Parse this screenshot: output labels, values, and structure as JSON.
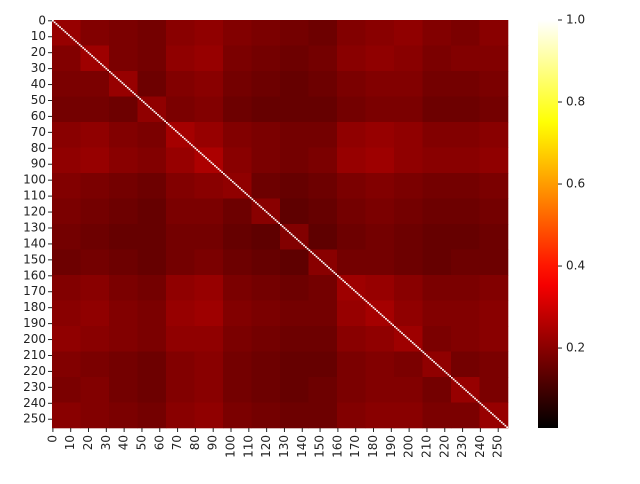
{
  "chart_data": {
    "type": "heatmap",
    "colormap": "hot",
    "xlim": [
      0,
      256
    ],
    "ylim": [
      0,
      256
    ],
    "xticks": [
      0,
      10,
      20,
      30,
      40,
      50,
      60,
      70,
      80,
      90,
      100,
      110,
      120,
      130,
      140,
      150,
      160,
      170,
      180,
      190,
      200,
      210,
      220,
      230,
      240,
      250
    ],
    "yticks": [
      0,
      10,
      20,
      30,
      40,
      50,
      60,
      70,
      80,
      90,
      100,
      110,
      120,
      130,
      140,
      150,
      160,
      170,
      180,
      190,
      200,
      210,
      220,
      230,
      240,
      250
    ],
    "values": [
      [
        0.22,
        0.19,
        0.18,
        0.17,
        0.2,
        0.21,
        0.19,
        0.18,
        0.17,
        0.16,
        0.19,
        0.2,
        0.21,
        0.19,
        0.18,
        0.2
      ],
      [
        0.19,
        0.23,
        0.18,
        0.17,
        0.21,
        0.22,
        0.18,
        0.17,
        0.16,
        0.17,
        0.2,
        0.21,
        0.2,
        0.18,
        0.19,
        0.19
      ],
      [
        0.18,
        0.18,
        0.22,
        0.16,
        0.19,
        0.2,
        0.17,
        0.16,
        0.15,
        0.16,
        0.18,
        0.19,
        0.19,
        0.17,
        0.17,
        0.18
      ],
      [
        0.17,
        0.17,
        0.16,
        0.21,
        0.18,
        0.19,
        0.16,
        0.15,
        0.15,
        0.15,
        0.17,
        0.18,
        0.18,
        0.16,
        0.16,
        0.17
      ],
      [
        0.2,
        0.21,
        0.19,
        0.18,
        0.24,
        0.22,
        0.19,
        0.18,
        0.17,
        0.17,
        0.21,
        0.22,
        0.21,
        0.19,
        0.19,
        0.2
      ],
      [
        0.21,
        0.22,
        0.2,
        0.19,
        0.22,
        0.25,
        0.2,
        0.18,
        0.17,
        0.18,
        0.22,
        0.23,
        0.21,
        0.2,
        0.2,
        0.21
      ],
      [
        0.19,
        0.18,
        0.17,
        0.16,
        0.19,
        0.2,
        0.21,
        0.16,
        0.15,
        0.16,
        0.18,
        0.19,
        0.18,
        0.17,
        0.17,
        0.18
      ],
      [
        0.18,
        0.17,
        0.16,
        0.15,
        0.18,
        0.18,
        0.16,
        0.2,
        0.14,
        0.15,
        0.17,
        0.18,
        0.17,
        0.16,
        0.16,
        0.17
      ],
      [
        0.17,
        0.16,
        0.15,
        0.15,
        0.17,
        0.17,
        0.15,
        0.14,
        0.19,
        0.14,
        0.16,
        0.17,
        0.16,
        0.15,
        0.15,
        0.16
      ],
      [
        0.16,
        0.17,
        0.16,
        0.15,
        0.17,
        0.18,
        0.16,
        0.15,
        0.14,
        0.2,
        0.17,
        0.17,
        0.16,
        0.15,
        0.16,
        0.16
      ],
      [
        0.19,
        0.2,
        0.18,
        0.17,
        0.21,
        0.22,
        0.18,
        0.17,
        0.16,
        0.17,
        0.23,
        0.22,
        0.2,
        0.18,
        0.18,
        0.19
      ],
      [
        0.2,
        0.21,
        0.19,
        0.18,
        0.22,
        0.23,
        0.19,
        0.18,
        0.17,
        0.17,
        0.22,
        0.24,
        0.21,
        0.19,
        0.19,
        0.2
      ],
      [
        0.21,
        0.2,
        0.19,
        0.18,
        0.21,
        0.21,
        0.18,
        0.17,
        0.16,
        0.16,
        0.2,
        0.21,
        0.23,
        0.18,
        0.19,
        0.2
      ],
      [
        0.19,
        0.18,
        0.17,
        0.16,
        0.19,
        0.2,
        0.17,
        0.16,
        0.15,
        0.15,
        0.18,
        0.19,
        0.18,
        0.21,
        0.17,
        0.18
      ],
      [
        0.18,
        0.19,
        0.17,
        0.16,
        0.19,
        0.2,
        0.17,
        0.16,
        0.15,
        0.16,
        0.18,
        0.19,
        0.19,
        0.17,
        0.22,
        0.18
      ],
      [
        0.2,
        0.19,
        0.18,
        0.17,
        0.2,
        0.21,
        0.18,
        0.17,
        0.16,
        0.16,
        0.19,
        0.2,
        0.2,
        0.18,
        0.18,
        0.22
      ]
    ],
    "diagonal": [
      1,
      1,
      1,
      1,
      1,
      1,
      1,
      1,
      1,
      1,
      1,
      1,
      1,
      1,
      1,
      1,
      1,
      1,
      1,
      1,
      1,
      1,
      1,
      1,
      1,
      1,
      1,
      1,
      1,
      1,
      1,
      1,
      1,
      1,
      1,
      1,
      1,
      1,
      1,
      1,
      1,
      1,
      1,
      1,
      1,
      1,
      1,
      1,
      1,
      1,
      1,
      1,
      1,
      1,
      1,
      1,
      1,
      1,
      1,
      1,
      1,
      1,
      1,
      1,
      1,
      1,
      1,
      1,
      1,
      1,
      1,
      1,
      1,
      1,
      1,
      1,
      1,
      1,
      1,
      1,
      1,
      1,
      1,
      1,
      1,
      1,
      1,
      1,
      1,
      1,
      1,
      1,
      1,
      1,
      1,
      1,
      1,
      1,
      1,
      1,
      1,
      1,
      1,
      1,
      1,
      1,
      1,
      1,
      1,
      1,
      1,
      1,
      1,
      1,
      1,
      1,
      1,
      1,
      1,
      1,
      1,
      1,
      1,
      1,
      1,
      1,
      1,
      1,
      1,
      1,
      1,
      1,
      1,
      1,
      1,
      1,
      1,
      1,
      1,
      1,
      1,
      1,
      1,
      1,
      1,
      1,
      1,
      1,
      1,
      1,
      1,
      1,
      1,
      1,
      1,
      1,
      1,
      1,
      1,
      1,
      1,
      1,
      1,
      1,
      1,
      1,
      1,
      1,
      1,
      1,
      1,
      1,
      1,
      1,
      1,
      1,
      1,
      1,
      1,
      1,
      1,
      1,
      1,
      1,
      1,
      1,
      1,
      1,
      1,
      1,
      1,
      1,
      1,
      1,
      1,
      1,
      1,
      1,
      1,
      1,
      1,
      1,
      1,
      1,
      1,
      1,
      1,
      1,
      1,
      1,
      1,
      1,
      1,
      1,
      1,
      1,
      1,
      1,
      1,
      1,
      1,
      1,
      1,
      1,
      1,
      1,
      1,
      1,
      1,
      1,
      1,
      1,
      1,
      1,
      1,
      1,
      1,
      1,
      1,
      1,
      1,
      1,
      1,
      1,
      1,
      1,
      1,
      1,
      1,
      1,
      1,
      1,
      1,
      1,
      1,
      1
    ],
    "clim": [
      0.005,
      1
    ],
    "cticks": [
      0.2,
      0.4,
      0.6,
      0.8,
      {
        "value": 1,
        "label": "1.0"
      }
    ]
  }
}
